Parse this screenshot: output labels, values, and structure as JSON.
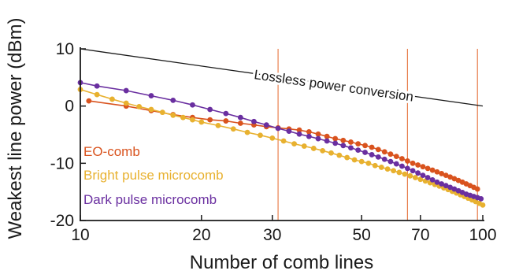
{
  "chart_data": {
    "type": "scatter",
    "xlabel": "Number of comb lines",
    "ylabel": "Weakest line power (dBm)",
    "xscale": "log",
    "xlim": [
      10,
      100
    ],
    "ylim": [
      -20,
      10
    ],
    "x_ticks": [
      10,
      20,
      30,
      50,
      70,
      100
    ],
    "x_tick_labels": [
      "10",
      "20",
      "30",
      "50",
      "70",
      "100"
    ],
    "y_ticks": [
      10,
      0,
      -10,
      -20
    ],
    "y_tick_labels": [
      "10",
      "0",
      "-10",
      "-20"
    ],
    "grid": false,
    "legend_position": "lower-left",
    "vertical_lines_x": [
      31,
      65,
      97
    ],
    "reference_line": {
      "label": "Lossless power conversion",
      "x": [
        10,
        100
      ],
      "y": [
        10,
        0
      ],
      "color": "#1a1a1a"
    },
    "series": [
      {
        "name": "EO-comb",
        "color": "#d9531e",
        "x": [
          10.5,
          13,
          15,
          17,
          19,
          21,
          23,
          25,
          27,
          29,
          31,
          33,
          35,
          37,
          39,
          41,
          43,
          45,
          47,
          49,
          51,
          53,
          55,
          57,
          59,
          61,
          63,
          65,
          67,
          69,
          71,
          73,
          75,
          77,
          79,
          81,
          83,
          85,
          87,
          89,
          91,
          93,
          95,
          97
        ],
        "y": [
          0.9,
          0.0,
          -0.8,
          -1.5,
          -2.0,
          -2.4,
          -2.6,
          -3.0,
          -3.3,
          -3.6,
          -3.8,
          -4.0,
          -4.2,
          -4.5,
          -4.9,
          -5.3,
          -5.7,
          -6.0,
          -6.3,
          -6.6,
          -6.9,
          -7.2,
          -7.6,
          -8.0,
          -8.4,
          -8.8,
          -9.2,
          -9.6,
          -10.0,
          -10.3,
          -10.6,
          -10.9,
          -11.2,
          -11.5,
          -11.8,
          -12.1,
          -12.4,
          -12.7,
          -13.0,
          -13.3,
          -13.6,
          -13.9,
          -14.2,
          -14.5
        ]
      },
      {
        "name": "Bright pulse microcomb",
        "color": "#e8b12f",
        "x": [
          10,
          11,
          12,
          13,
          14,
          15,
          16,
          17,
          18,
          19,
          20,
          22,
          24,
          26,
          28,
          30,
          32,
          34,
          36,
          38,
          40,
          42,
          44,
          46,
          48,
          50,
          52,
          54,
          56,
          58,
          60,
          62,
          64,
          66,
          68,
          70,
          72,
          74,
          76,
          78,
          80,
          82,
          84,
          86,
          88,
          90,
          92,
          94,
          96,
          98,
          100
        ],
        "y": [
          2.9,
          2.0,
          1.2,
          0.5,
          -0.1,
          -0.6,
          -1.1,
          -1.6,
          -2.0,
          -2.4,
          -2.8,
          -3.4,
          -4.0,
          -4.6,
          -5.1,
          -5.6,
          -6.1,
          -6.6,
          -7.0,
          -7.4,
          -7.8,
          -8.2,
          -8.6,
          -9.0,
          -9.4,
          -9.7,
          -10.0,
          -10.4,
          -10.7,
          -11.0,
          -11.3,
          -11.6,
          -11.9,
          -12.2,
          -12.5,
          -12.8,
          -13.1,
          -13.4,
          -13.7,
          -14.0,
          -14.3,
          -14.6,
          -14.9,
          -15.2,
          -15.5,
          -15.8,
          -16.1,
          -16.4,
          -16.7,
          -17.0,
          -17.3
        ]
      },
      {
        "name": "Dark pulse microcomb",
        "color": "#6a2fa0",
        "x": [
          10,
          11,
          13,
          15,
          17,
          19,
          21,
          23,
          25,
          27,
          29,
          31,
          33,
          35,
          37,
          39,
          41,
          43,
          45,
          47,
          49,
          51,
          53,
          55,
          57,
          59,
          61,
          63,
          65,
          67,
          69,
          71,
          73,
          75,
          77,
          79,
          81,
          83,
          85,
          87,
          89,
          91,
          93,
          95,
          97,
          99
        ],
        "y": [
          4.1,
          3.5,
          2.7,
          1.8,
          1.0,
          0.2,
          -0.6,
          -1.3,
          -2.0,
          -2.7,
          -3.3,
          -3.9,
          -4.4,
          -4.9,
          -5.3,
          -5.7,
          -6.1,
          -6.5,
          -6.9,
          -7.3,
          -7.7,
          -8.1,
          -8.5,
          -8.9,
          -9.3,
          -9.7,
          -10.1,
          -10.5,
          -10.9,
          -11.3,
          -11.7,
          -12.1,
          -12.5,
          -12.9,
          -13.3,
          -13.6,
          -13.9,
          -14.2,
          -14.5,
          -14.8,
          -15.1,
          -15.4,
          -15.6,
          -15.8,
          -16.0,
          -16.2
        ]
      }
    ]
  }
}
